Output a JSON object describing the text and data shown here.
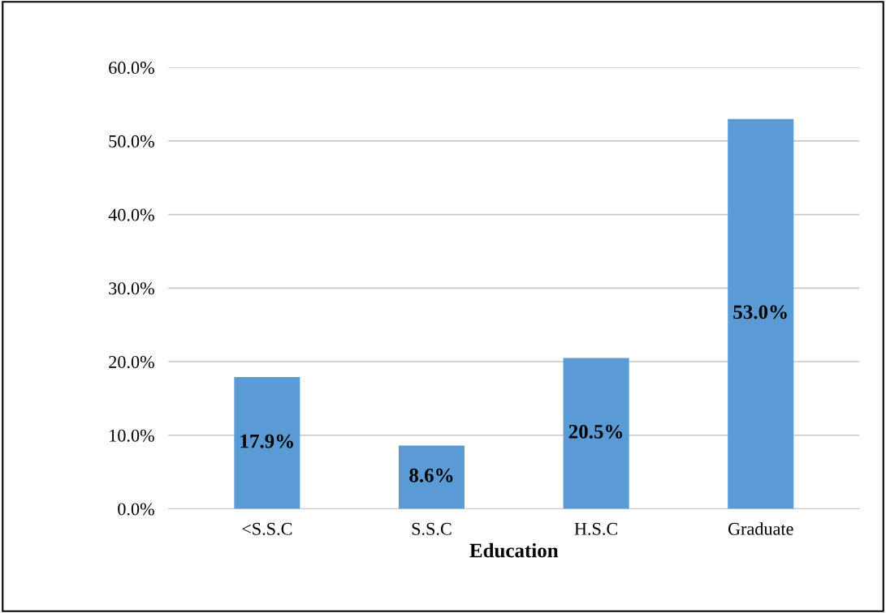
{
  "chart_data": {
    "type": "bar",
    "xlabel": "Education",
    "categories": [
      "<S.S.C",
      "S.S.C",
      "H.S.C",
      "Graduate"
    ],
    "values": [
      17.9,
      8.6,
      20.5,
      53.0
    ],
    "value_labels": [
      "17.9%",
      "8.6%",
      "20.5%",
      "53.0%"
    ],
    "color": "#5b9bd5",
    "ylim": [
      0,
      60
    ],
    "yticks": [
      {
        "value": 0,
        "label": "0.0%"
      },
      {
        "value": 10,
        "label": "10.0%"
      },
      {
        "value": 20,
        "label": "20.0%"
      },
      {
        "value": 30,
        "label": "30.0%"
      },
      {
        "value": 40,
        "label": "40.0%"
      },
      {
        "value": 50,
        "label": "50.0%"
      },
      {
        "value": 60,
        "label": "60.0%"
      }
    ],
    "grid": "y",
    "legend": false
  }
}
